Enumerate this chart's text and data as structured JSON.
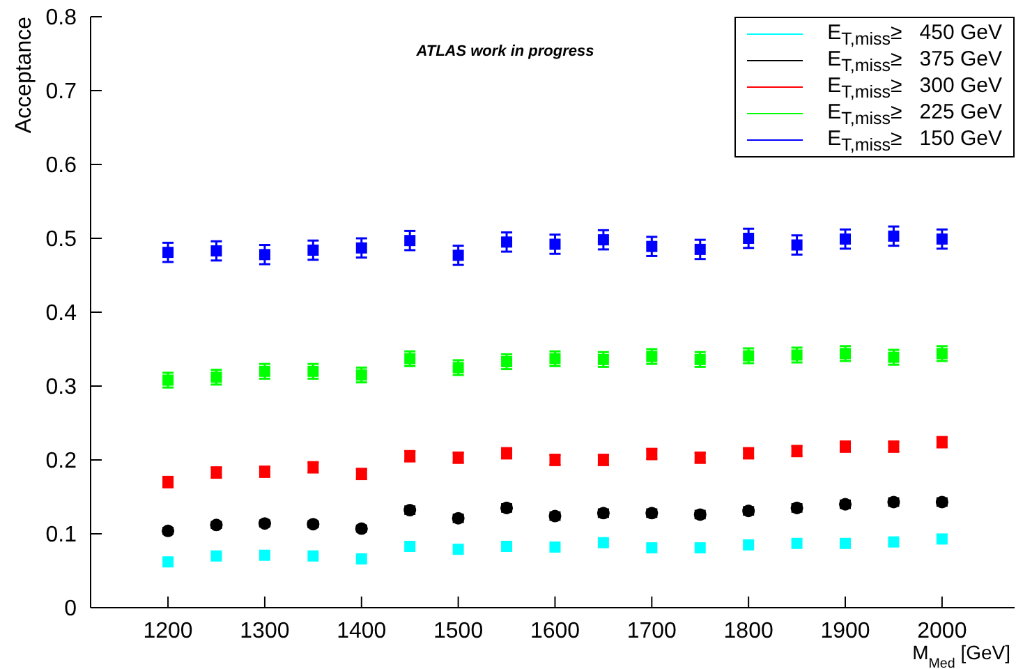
{
  "chart_data": {
    "type": "scatter",
    "annotations": [
      "ATLAS work in progress"
    ],
    "xlabel": "M$_{Med}$ [GeV]",
    "ylabel": "Acceptance",
    "x": [
      1200,
      1250,
      1300,
      1350,
      1400,
      1450,
      1500,
      1550,
      1600,
      1650,
      1700,
      1750,
      1800,
      1850,
      1900,
      1950,
      2000
    ],
    "series": [
      {
        "name": "E$_{T,miss}$≥   450 GeV",
        "color": "#00ffff",
        "marker": "square",
        "values": [
          0.062,
          0.07,
          0.071,
          0.07,
          0.066,
          0.083,
          0.079,
          0.083,
          0.082,
          0.088,
          0.081,
          0.081,
          0.085,
          0.087,
          0.087,
          0.089,
          0.093
        ]
      },
      {
        "name": "E$_{T,miss}$≥   375 GeV",
        "color": "#000000",
        "marker": "circle",
        "values": [
          0.104,
          0.112,
          0.114,
          0.113,
          0.107,
          0.132,
          0.121,
          0.135,
          0.124,
          0.128,
          0.128,
          0.126,
          0.131,
          0.135,
          0.14,
          0.143,
          0.143
        ],
        "errors": [
          0.004,
          0.004,
          0.004,
          0.004,
          0.004,
          0.005,
          0.005,
          0.005,
          0.005,
          0.005,
          0.005,
          0.005,
          0.005,
          0.005,
          0.005,
          0.005,
          0.005
        ]
      },
      {
        "name": "E$_{T,miss}$≥   300 GeV",
        "color": "#ff0000",
        "marker": "square",
        "values": [
          0.17,
          0.183,
          0.184,
          0.19,
          0.181,
          0.205,
          0.203,
          0.209,
          0.2,
          0.2,
          0.208,
          0.203,
          0.209,
          0.212,
          0.218,
          0.218,
          0.224
        ],
        "errors": [
          0.007,
          0.007,
          0.007,
          0.007,
          0.007,
          0.007,
          0.007,
          0.007,
          0.007,
          0.007,
          0.007,
          0.007,
          0.007,
          0.007,
          0.007,
          0.007,
          0.007
        ]
      },
      {
        "name": "E$_{T,miss}$≥   225 GeV",
        "color": "#00ff00",
        "marker": "square",
        "values": [
          0.308,
          0.312,
          0.32,
          0.32,
          0.315,
          0.337,
          0.325,
          0.333,
          0.337,
          0.336,
          0.34,
          0.336,
          0.341,
          0.342,
          0.344,
          0.339,
          0.344
        ],
        "errors": [
          0.01,
          0.01,
          0.01,
          0.01,
          0.01,
          0.01,
          0.01,
          0.01,
          0.01,
          0.01,
          0.01,
          0.01,
          0.01,
          0.01,
          0.01,
          0.01,
          0.01
        ]
      },
      {
        "name": "E$_{T,miss}$≥   150 GeV",
        "color": "#0000ff",
        "marker": "square",
        "values": [
          0.481,
          0.483,
          0.478,
          0.484,
          0.487,
          0.497,
          0.477,
          0.495,
          0.492,
          0.498,
          0.489,
          0.485,
          0.5,
          0.491,
          0.499,
          0.503,
          0.499
        ],
        "errors": [
          0.013,
          0.013,
          0.013,
          0.013,
          0.013,
          0.013,
          0.013,
          0.013,
          0.013,
          0.013,
          0.013,
          0.013,
          0.013,
          0.013,
          0.013,
          0.013,
          0.013
        ]
      }
    ],
    "xlim": [
      1120,
      2075
    ],
    "xticks": [
      1200,
      1300,
      1400,
      1500,
      1600,
      1700,
      1800,
      1900,
      2000
    ],
    "ylim": [
      0,
      0.8
    ],
    "yticks": [
      0,
      0.1,
      0.2,
      0.3,
      0.4,
      0.5,
      0.6,
      0.7,
      0.8
    ],
    "grid": false,
    "legend": "top right"
  }
}
